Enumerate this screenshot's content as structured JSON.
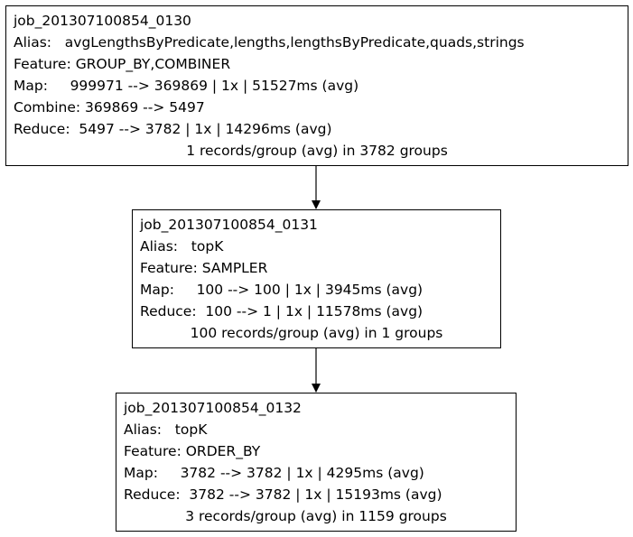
{
  "jobs": [
    {
      "id": "job_201307100854_0130",
      "alias": "Alias:   avgLengthsByPredicate,lengths,lengthsByPredicate,quads,strings",
      "feature": "Feature: GROUP_BY,COMBINER",
      "map": "Map:     999971 --> 369869 | 1x | 51527ms (avg)",
      "combine": "Combine: 369869 --> 5497",
      "reduce": "Reduce:  5497 --> 3782 | 1x | 14296ms (avg)",
      "summary": "1 records/group (avg) in 3782 groups"
    },
    {
      "id": "job_201307100854_0131",
      "alias": "Alias:   topK",
      "feature": "Feature: SAMPLER",
      "map": "Map:     100 --> 100 | 1x | 3945ms (avg)",
      "reduce": "Reduce:  100 --> 1 | 1x | 11578ms (avg)",
      "summary": "100 records/group (avg) in 1 groups"
    },
    {
      "id": "job_201307100854_0132",
      "alias": "Alias:   topK",
      "feature": "Feature: ORDER_BY",
      "map": "Map:     3782 --> 3782 | 1x | 4295ms (avg)",
      "reduce": "Reduce:  3782 --> 3782 | 1x | 15193ms (avg)",
      "summary": "3 records/group (avg) in 1159 groups"
    }
  ],
  "edges": [
    {
      "from": "job_201307100854_0130",
      "to": "job_201307100854_0131"
    },
    {
      "from": "job_201307100854_0131",
      "to": "job_201307100854_0132"
    }
  ]
}
